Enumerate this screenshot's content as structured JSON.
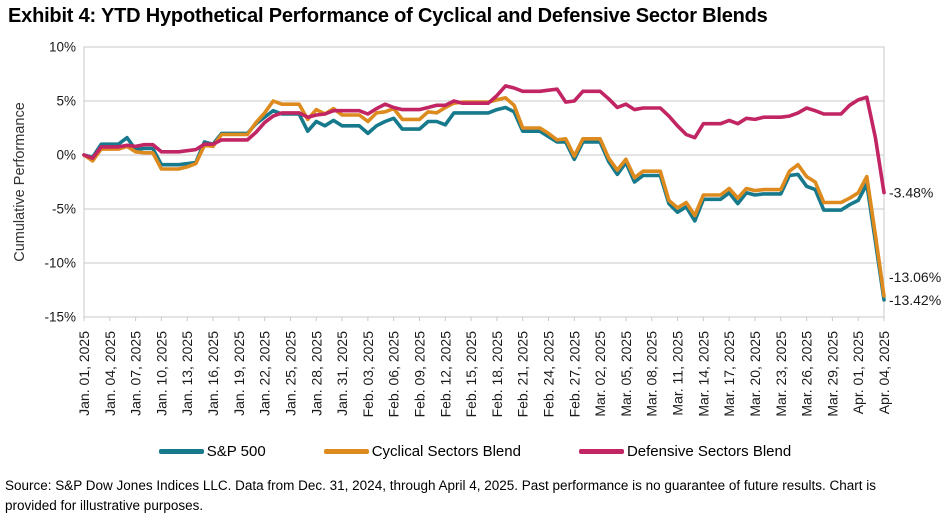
{
  "title": "Exhibit 4: YTD Hypothetical Performance of Cyclical and Defensive Sector Blends",
  "source_note": "Source: S&P Dow Jones Indices LLC. Data from Dec. 31, 2024, through April 4, 2025. Past performance is no guarantee of future results. Chart is provided for illustrative purposes.",
  "chart_data": {
    "type": "line",
    "title": "Exhibit 4: YTD Hypothetical Performance of Cyclical and Defensive Sector Blends",
    "xlabel": "",
    "ylabel": "Cumulative Performance",
    "ylim": [
      -15,
      10
    ],
    "ytick_step": 5,
    "ytick_labels": [
      "10%",
      "5%",
      "0%",
      "-5%",
      "-10%",
      "-15%"
    ],
    "grid": true,
    "grid_color": "#c8c8c8",
    "legend_position": "bottom",
    "x_axis": {
      "unit": "calendar days, Jan. 01 2025 = 0",
      "range": [
        0,
        93
      ],
      "tick_interval_days": 3,
      "tick_labels": [
        "Jan. 01, 2025",
        "Jan. 04, 2025",
        "Jan. 07, 2025",
        "Jan. 10, 2025",
        "Jan. 13, 2025",
        "Jan. 16, 2025",
        "Jan. 19, 2025",
        "Jan. 22, 2025",
        "Jan. 25, 2025",
        "Jan. 28, 2025",
        "Jan. 31, 2025",
        "Feb. 03, 2025",
        "Feb. 06, 2025",
        "Feb. 09, 2025",
        "Feb. 12, 2025",
        "Feb. 15, 2025",
        "Feb. 18, 2025",
        "Feb. 21, 2025",
        "Feb. 24, 2025",
        "Feb. 27, 2025",
        "Mar. 02, 2025",
        "Mar. 05, 2025",
        "Mar. 08, 2025",
        "Mar. 11, 2025",
        "Mar. 14, 2025",
        "Mar. 17, 2025",
        "Mar. 20, 2025",
        "Mar. 23, 2025",
        "Mar. 26, 2025",
        "Mar. 29, 2025",
        "Apr. 01, 2025",
        "Apr. 04, 2025"
      ]
    },
    "series": [
      {
        "name": "S&P 500",
        "color": "#17798c",
        "end_label": "-13.42%",
        "end_value": -13.42,
        "values_daily": [
          0.0,
          -0.2,
          1.0,
          1.0,
          1.0,
          1.6,
          0.5,
          0.6,
          0.6,
          -0.9,
          -0.9,
          -0.9,
          -0.8,
          -0.7,
          1.2,
          1.0,
          2.0,
          2.0,
          2.0,
          2.0,
          2.9,
          3.5,
          4.1,
          3.8,
          3.8,
          3.8,
          2.2,
          3.1,
          2.7,
          3.2,
          2.7,
          2.7,
          2.7,
          2.0,
          2.7,
          3.1,
          3.4,
          2.4,
          2.4,
          2.4,
          3.1,
          3.1,
          2.8,
          3.9,
          3.9,
          3.9,
          3.9,
          3.9,
          4.2,
          4.4,
          4.0,
          2.2,
          2.2,
          2.2,
          1.7,
          1.2,
          1.2,
          -0.4,
          1.2,
          1.2,
          1.2,
          -0.6,
          -1.8,
          -0.7,
          -2.5,
          -1.9,
          -1.9,
          -1.9,
          -4.5,
          -5.3,
          -4.8,
          -6.1,
          -4.1,
          -4.1,
          -4.1,
          -3.5,
          -4.5,
          -3.5,
          -3.7,
          -3.6,
          -3.6,
          -3.6,
          -1.9,
          -1.8,
          -2.9,
          -3.2,
          -5.1,
          -5.1,
          -5.1,
          -4.6,
          -4.2,
          -2.7,
          -8.0,
          -13.42
        ]
      },
      {
        "name": "Cyclical Sectors Blend",
        "color": "#dd8a1e",
        "end_label": "-13.06%",
        "end_value": -13.06,
        "values_daily": [
          0.0,
          -0.55,
          0.55,
          0.55,
          0.55,
          0.8,
          0.3,
          0.2,
          0.2,
          -1.3,
          -1.3,
          -1.3,
          -1.1,
          -0.8,
          0.9,
          0.8,
          1.9,
          1.9,
          1.9,
          1.9,
          3.0,
          3.9,
          5.0,
          4.7,
          4.7,
          4.7,
          3.3,
          4.2,
          3.8,
          4.3,
          3.7,
          3.7,
          3.7,
          3.1,
          3.9,
          4.0,
          4.3,
          3.3,
          3.3,
          3.3,
          4.0,
          3.9,
          4.4,
          4.8,
          4.9,
          4.9,
          4.9,
          4.9,
          5.1,
          5.3,
          4.6,
          2.5,
          2.5,
          2.5,
          2.0,
          1.4,
          1.5,
          -0.1,
          1.5,
          1.5,
          1.5,
          -0.3,
          -1.4,
          -0.4,
          -2.1,
          -1.5,
          -1.5,
          -1.5,
          -4.2,
          -4.9,
          -4.4,
          -5.6,
          -3.7,
          -3.7,
          -3.7,
          -3.1,
          -4.0,
          -3.1,
          -3.3,
          -3.2,
          -3.2,
          -3.2,
          -1.5,
          -0.9,
          -2.0,
          -2.5,
          -4.4,
          -4.4,
          -4.4,
          -4.0,
          -3.5,
          -2.0,
          -7.4,
          -13.06
        ]
      },
      {
        "name": "Defensive Sectors Blend",
        "color": "#c22563",
        "end_label": "-3.48%",
        "end_value": -3.48,
        "values_daily": [
          0.0,
          -0.3,
          0.75,
          0.75,
          0.75,
          0.9,
          0.8,
          0.95,
          0.95,
          0.3,
          0.3,
          0.3,
          0.4,
          0.5,
          1.0,
          1.0,
          1.4,
          1.4,
          1.4,
          1.4,
          2.1,
          3.0,
          3.6,
          3.9,
          3.9,
          3.9,
          3.5,
          3.7,
          3.8,
          4.1,
          4.1,
          4.1,
          4.1,
          3.8,
          4.3,
          4.7,
          4.4,
          4.2,
          4.2,
          4.2,
          4.4,
          4.6,
          4.6,
          5.0,
          4.8,
          4.8,
          4.8,
          4.8,
          5.5,
          6.4,
          6.2,
          5.9,
          5.9,
          5.9,
          6.0,
          6.1,
          4.9,
          5.0,
          5.9,
          5.9,
          5.9,
          5.2,
          4.4,
          4.7,
          4.2,
          4.35,
          4.35,
          4.35,
          3.6,
          2.7,
          1.9,
          1.6,
          2.9,
          2.9,
          2.9,
          3.2,
          2.9,
          3.4,
          3.3,
          3.5,
          3.5,
          3.5,
          3.6,
          3.9,
          4.35,
          4.1,
          3.8,
          3.8,
          3.8,
          4.6,
          5.1,
          5.35,
          1.6,
          -3.48
        ]
      }
    ]
  }
}
